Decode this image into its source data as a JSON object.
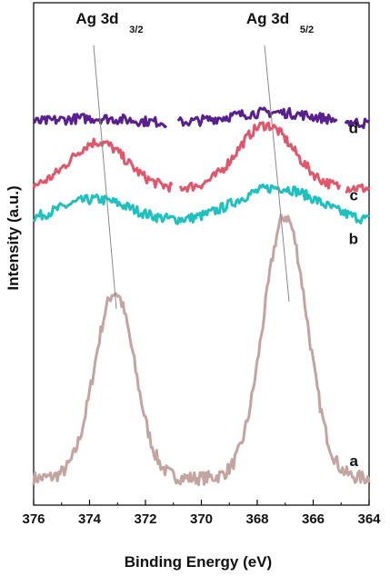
{
  "chart_data": {
    "type": "line",
    "title": "",
    "xlabel": "Binding Energy (eV)",
    "ylabel": "Intensity (a.u.)",
    "xlim": [
      376,
      364
    ],
    "x_reversed": true,
    "x_ticks": [
      376,
      374,
      372,
      370,
      368,
      366,
      364
    ],
    "y_ticks_shown": false,
    "grid": false,
    "annotations": [
      {
        "id": "ag3d32",
        "main": "Ag 3d",
        "sub": "3/2",
        "x": 373.4
      },
      {
        "id": "ag3d52",
        "main": "Ag 3d",
        "sub": "5/2",
        "x": 367.3
      }
    ],
    "series": [
      {
        "name": "a",
        "color": "#c4a4a0",
        "offset": 0,
        "peaks": [
          [
            373.1,
            220,
            0.72
          ],
          [
            367.0,
            310,
            0.78
          ]
        ],
        "base": 20
      },
      {
        "name": "b",
        "color": "#1ec0c0",
        "offset": 310,
        "peaks": [
          [
            373.8,
            28,
            1.3
          ],
          [
            367.3,
            42,
            1.5
          ]
        ],
        "base": 12
      },
      {
        "name": "c",
        "color": "#e0566a",
        "offset": 345,
        "peaks": [
          [
            373.7,
            55,
            1.0
          ],
          [
            367.7,
            75,
            1.0
          ]
        ],
        "base": 18
      },
      {
        "name": "d",
        "color": "#5a1f8f",
        "offset": 430,
        "peaks": [
          [
            373.9,
            8,
            1.6
          ],
          [
            367.5,
            15,
            1.7
          ]
        ],
        "base": 8
      }
    ]
  }
}
